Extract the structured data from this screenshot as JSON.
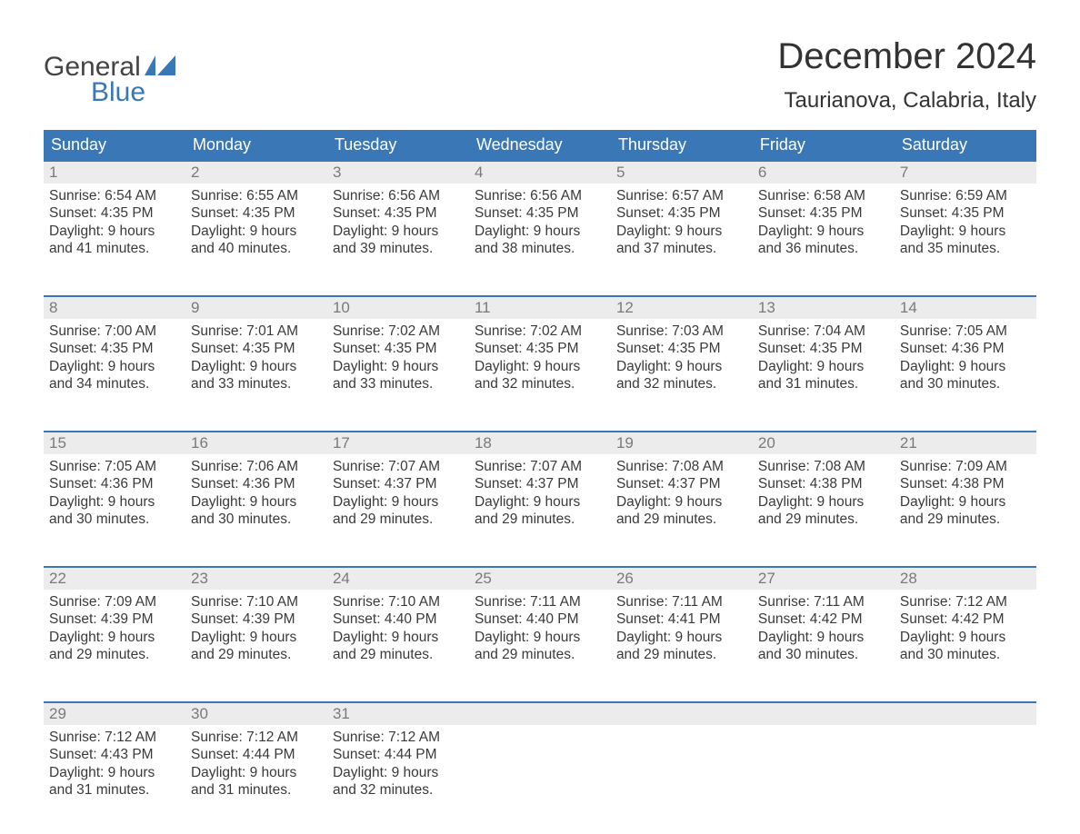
{
  "brand": {
    "name1": "General",
    "name2": "Blue",
    "flag_color": "#3a77b7"
  },
  "title": "December 2024",
  "location": "Taurianova, Calabria, Italy",
  "colors": {
    "header_bg": "#3a77b7",
    "header_text": "#ffffff",
    "daynum_bg": "#ececec",
    "daynum_border": "#3a77b7",
    "daynum_text": "#7a7a7a",
    "body_text": "#3a3a3a",
    "page_bg": "#ffffff"
  },
  "days_of_week": [
    "Sunday",
    "Monday",
    "Tuesday",
    "Wednesday",
    "Thursday",
    "Friday",
    "Saturday"
  ],
  "weeks": [
    [
      {
        "n": "1",
        "sunrise": "6:54 AM",
        "sunset": "4:35 PM",
        "dl1": "9 hours",
        "dl2": "and 41 minutes."
      },
      {
        "n": "2",
        "sunrise": "6:55 AM",
        "sunset": "4:35 PM",
        "dl1": "9 hours",
        "dl2": "and 40 minutes."
      },
      {
        "n": "3",
        "sunrise": "6:56 AM",
        "sunset": "4:35 PM",
        "dl1": "9 hours",
        "dl2": "and 39 minutes."
      },
      {
        "n": "4",
        "sunrise": "6:56 AM",
        "sunset": "4:35 PM",
        "dl1": "9 hours",
        "dl2": "and 38 minutes."
      },
      {
        "n": "5",
        "sunrise": "6:57 AM",
        "sunset": "4:35 PM",
        "dl1": "9 hours",
        "dl2": "and 37 minutes."
      },
      {
        "n": "6",
        "sunrise": "6:58 AM",
        "sunset": "4:35 PM",
        "dl1": "9 hours",
        "dl2": "and 36 minutes."
      },
      {
        "n": "7",
        "sunrise": "6:59 AM",
        "sunset": "4:35 PM",
        "dl1": "9 hours",
        "dl2": "and 35 minutes."
      }
    ],
    [
      {
        "n": "8",
        "sunrise": "7:00 AM",
        "sunset": "4:35 PM",
        "dl1": "9 hours",
        "dl2": "and 34 minutes."
      },
      {
        "n": "9",
        "sunrise": "7:01 AM",
        "sunset": "4:35 PM",
        "dl1": "9 hours",
        "dl2": "and 33 minutes."
      },
      {
        "n": "10",
        "sunrise": "7:02 AM",
        "sunset": "4:35 PM",
        "dl1": "9 hours",
        "dl2": "and 33 minutes."
      },
      {
        "n": "11",
        "sunrise": "7:02 AM",
        "sunset": "4:35 PM",
        "dl1": "9 hours",
        "dl2": "and 32 minutes."
      },
      {
        "n": "12",
        "sunrise": "7:03 AM",
        "sunset": "4:35 PM",
        "dl1": "9 hours",
        "dl2": "and 32 minutes."
      },
      {
        "n": "13",
        "sunrise": "7:04 AM",
        "sunset": "4:35 PM",
        "dl1": "9 hours",
        "dl2": "and 31 minutes."
      },
      {
        "n": "14",
        "sunrise": "7:05 AM",
        "sunset": "4:36 PM",
        "dl1": "9 hours",
        "dl2": "and 30 minutes."
      }
    ],
    [
      {
        "n": "15",
        "sunrise": "7:05 AM",
        "sunset": "4:36 PM",
        "dl1": "9 hours",
        "dl2": "and 30 minutes."
      },
      {
        "n": "16",
        "sunrise": "7:06 AM",
        "sunset": "4:36 PM",
        "dl1": "9 hours",
        "dl2": "and 30 minutes."
      },
      {
        "n": "17",
        "sunrise": "7:07 AM",
        "sunset": "4:37 PM",
        "dl1": "9 hours",
        "dl2": "and 29 minutes."
      },
      {
        "n": "18",
        "sunrise": "7:07 AM",
        "sunset": "4:37 PM",
        "dl1": "9 hours",
        "dl2": "and 29 minutes."
      },
      {
        "n": "19",
        "sunrise": "7:08 AM",
        "sunset": "4:37 PM",
        "dl1": "9 hours",
        "dl2": "and 29 minutes."
      },
      {
        "n": "20",
        "sunrise": "7:08 AM",
        "sunset": "4:38 PM",
        "dl1": "9 hours",
        "dl2": "and 29 minutes."
      },
      {
        "n": "21",
        "sunrise": "7:09 AM",
        "sunset": "4:38 PM",
        "dl1": "9 hours",
        "dl2": "and 29 minutes."
      }
    ],
    [
      {
        "n": "22",
        "sunrise": "7:09 AM",
        "sunset": "4:39 PM",
        "dl1": "9 hours",
        "dl2": "and 29 minutes."
      },
      {
        "n": "23",
        "sunrise": "7:10 AM",
        "sunset": "4:39 PM",
        "dl1": "9 hours",
        "dl2": "and 29 minutes."
      },
      {
        "n": "24",
        "sunrise": "7:10 AM",
        "sunset": "4:40 PM",
        "dl1": "9 hours",
        "dl2": "and 29 minutes."
      },
      {
        "n": "25",
        "sunrise": "7:11 AM",
        "sunset": "4:40 PM",
        "dl1": "9 hours",
        "dl2": "and 29 minutes."
      },
      {
        "n": "26",
        "sunrise": "7:11 AM",
        "sunset": "4:41 PM",
        "dl1": "9 hours",
        "dl2": "and 29 minutes."
      },
      {
        "n": "27",
        "sunrise": "7:11 AM",
        "sunset": "4:42 PM",
        "dl1": "9 hours",
        "dl2": "and 30 minutes."
      },
      {
        "n": "28",
        "sunrise": "7:12 AM",
        "sunset": "4:42 PM",
        "dl1": "9 hours",
        "dl2": "and 30 minutes."
      }
    ],
    [
      {
        "n": "29",
        "sunrise": "7:12 AM",
        "sunset": "4:43 PM",
        "dl1": "9 hours",
        "dl2": "and 31 minutes."
      },
      {
        "n": "30",
        "sunrise": "7:12 AM",
        "sunset": "4:44 PM",
        "dl1": "9 hours",
        "dl2": "and 31 minutes."
      },
      {
        "n": "31",
        "sunrise": "7:12 AM",
        "sunset": "4:44 PM",
        "dl1": "9 hours",
        "dl2": "and 32 minutes."
      },
      null,
      null,
      null,
      null
    ]
  ],
  "labels": {
    "sunrise": "Sunrise:",
    "sunset": "Sunset:",
    "daylight": "Daylight:"
  }
}
